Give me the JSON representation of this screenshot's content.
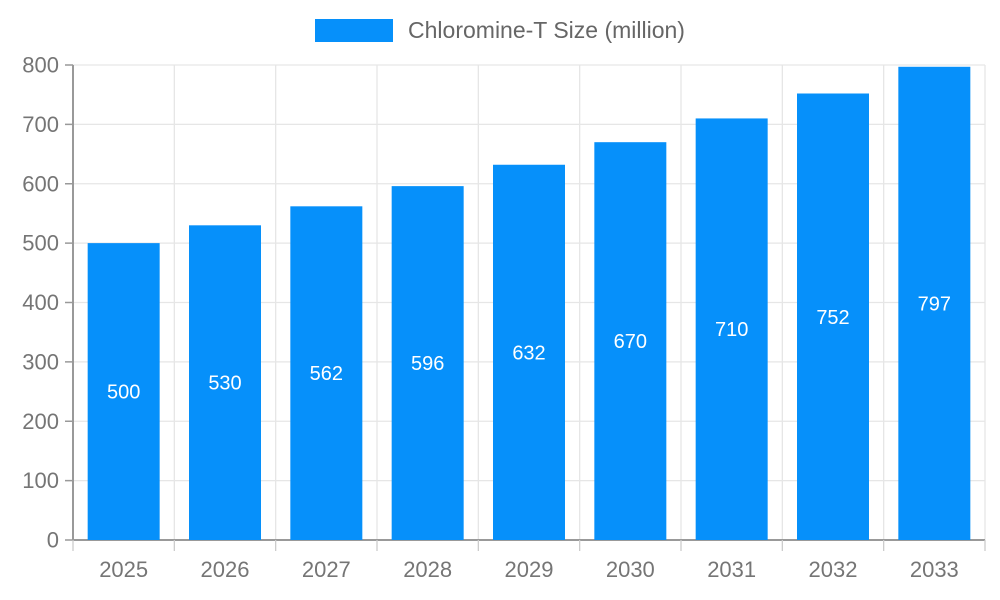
{
  "legend": {
    "label": "Chloromine-T Size (million)"
  },
  "chart_data": {
    "type": "bar",
    "title": "Chloromine-T Size (million)",
    "categories": [
      "2025",
      "2026",
      "2027",
      "2028",
      "2029",
      "2030",
      "2031",
      "2032",
      "2033"
    ],
    "values": [
      500,
      530,
      562,
      596,
      632,
      670,
      710,
      752,
      797
    ],
    "xlabel": "",
    "ylabel": "",
    "ylim": [
      0,
      800
    ],
    "yticks": [
      0,
      100,
      200,
      300,
      400,
      500,
      600,
      700,
      800
    ],
    "grid": true,
    "legend_position": "top-center",
    "value_labels": "inside-center-white",
    "colors": {
      "bar": "#0690fa",
      "axis_line": "#999999",
      "grid_line": "#e6e6e6",
      "x_tick_mark": "#cccccc",
      "tick_label": "#757575",
      "legend_text": "#666666",
      "value_label": "#ffffff",
      "background": "#ffffff"
    }
  }
}
